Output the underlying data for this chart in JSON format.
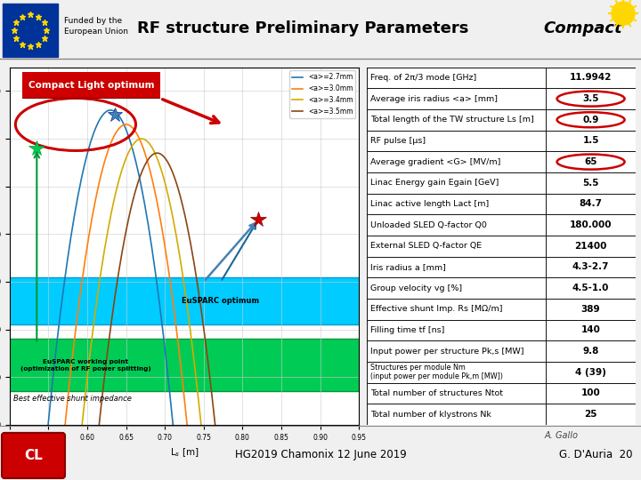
{
  "title": "RF structure Preliminary Parameters",
  "funded_text": "Funded by the\nEuropean Union",
  "compact_text": "Compact",
  "table_rows": [
    [
      "Freq. of 2π/3 mode [GHz]",
      "11.9942",
      false
    ],
    [
      "Average iris radius <a> [mm]",
      "3.5",
      true
    ],
    [
      "Total length of the TW structure Ls [m]",
      "0.9",
      true
    ],
    [
      "RF pulse [μs]",
      "1.5",
      false
    ],
    [
      "Average gradient <G> [MV/m]",
      "65",
      true
    ],
    [
      "Linac Energy gain Egain [GeV]",
      "5.5",
      false
    ],
    [
      "Linac active length Lact [m]",
      "84.7",
      false
    ],
    [
      "Unloaded SLED Q-factor Q0",
      "180.000",
      false
    ],
    [
      "External SLED Q-factor QE",
      "21400",
      false
    ],
    [
      "Iris radius a [mm]",
      "4.3-2.7",
      false
    ],
    [
      "Group velocity vg [%]",
      "4.5-1.0",
      false
    ],
    [
      "Effective shunt Imp. Rs [MΩ/m]",
      "389",
      false
    ],
    [
      "Filling time tf [ns]",
      "140",
      false
    ],
    [
      "Input power per structure Pk,s [MW]",
      "9.8",
      false
    ],
    [
      "Structures per module Nm\n(input power per module Pk,m [MW])",
      "4 (39)",
      false
    ],
    [
      "Total number of structures Ntot",
      "100",
      false
    ],
    [
      "Total number of klystrons Nk",
      "25",
      false
    ]
  ],
  "circle_color": "#cc0000",
  "footer_text_center": "HG2019 Chamonix 12 June 2019",
  "footer_text_right": "G. D'Auria  20",
  "footer_author": "A. Gallo",
  "compact_label": "Compact Light optimum",
  "eusparc_label": "EuSPARC optimum",
  "eusparc_wp_label": "EuSPARC working point\n(optimization of RF power splitting)",
  "best_shunt_label": "Best effective shunt impedance",
  "line_colors": [
    "#1f77b4",
    "#ff7f0e",
    "#d4aa00",
    "#8B4513"
  ],
  "line_labels": [
    "<a>=2.7mm",
    "<a>=3.0mm",
    "<a>=3.4mm",
    "<a>=3.5mm"
  ]
}
